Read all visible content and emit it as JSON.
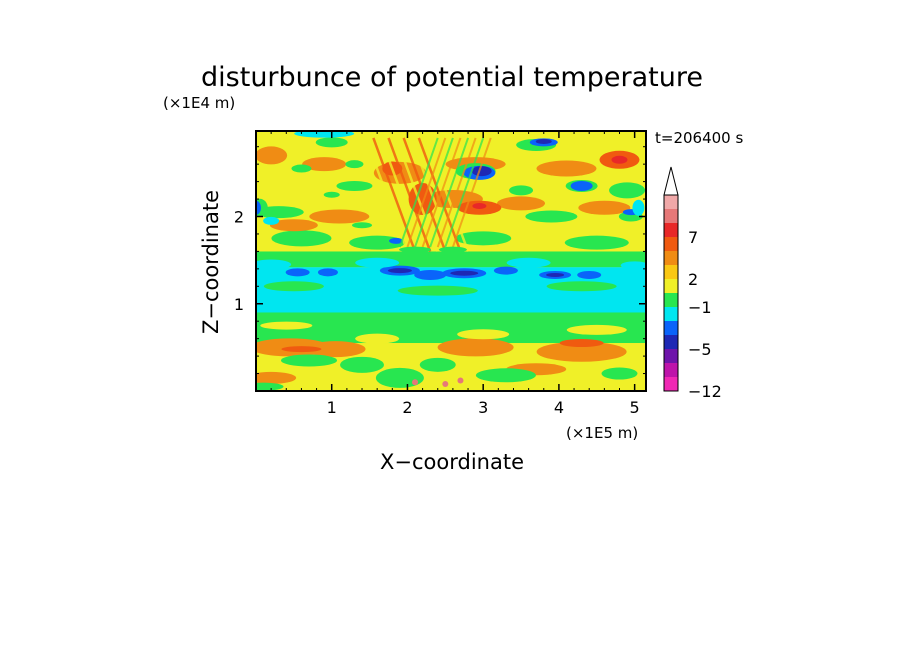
{
  "chart_data": {
    "type": "heatmap",
    "title": "disturbunce of potential temperature",
    "time_label": "t=206400 s",
    "xlabel": "X−coordinate",
    "ylabel": "Z−coordinate",
    "x_unit": "(×1E5 m)",
    "y_unit": "(×1E4 m)",
    "xlim": [
      0,
      5.15
    ],
    "ylim": [
      0,
      2.98
    ],
    "x_ticks": [
      {
        "value": 1,
        "label": "1"
      },
      {
        "value": 2,
        "label": "2"
      },
      {
        "value": 3,
        "label": "3"
      },
      {
        "value": 4,
        "label": "4"
      },
      {
        "value": 5,
        "label": "5"
      }
    ],
    "y_ticks": [
      {
        "value": 1,
        "label": "1"
      },
      {
        "value": 2,
        "label": "2"
      }
    ],
    "colorbar": {
      "levels": [
        {
          "color": "#f0a8a8"
        },
        {
          "color": "#e67878"
        },
        {
          "color": "#e82828"
        },
        {
          "color": "#f05a10"
        },
        {
          "color": "#f08c14"
        },
        {
          "color": "#fac814"
        },
        {
          "color": "#f0f028"
        },
        {
          "color": "#28e650"
        },
        {
          "color": "#00e6f0"
        },
        {
          "color": "#0a64fa"
        },
        {
          "color": "#1e28b4"
        },
        {
          "color": "#6e14aa"
        },
        {
          "color": "#be14aa"
        },
        {
          "color": "#f028b4"
        }
      ],
      "labels": [
        {
          "text": "7",
          "at": 3
        },
        {
          "text": "2",
          "at": 6
        },
        {
          "text": "−1",
          "at": 8
        },
        {
          "text": "−5",
          "at": 11
        },
        {
          "text": "−12",
          "at": 14
        }
      ],
      "extend": "max"
    },
    "field_layers": [
      {
        "z": [
          0.0,
          0.18
        ],
        "value": "yellow"
      },
      {
        "z": [
          0.18,
          0.55
        ],
        "value": "yellow/orange with green patches"
      },
      {
        "z": [
          0.55,
          0.85
        ],
        "value": "green/yellow"
      },
      {
        "z": [
          0.85,
          1.4
        ],
        "value": "cyan (cool anomaly band)"
      },
      {
        "z": [
          1.25,
          1.45
        ],
        "value": "blue cells near z=1.35"
      },
      {
        "z": [
          1.45,
          2.2
        ],
        "value": "yellow/orange with green, wave pattern near x=2.2"
      },
      {
        "z": [
          2.2,
          2.98
        ],
        "value": "mixed orange/red warm cells and blue cold cells"
      }
    ]
  }
}
